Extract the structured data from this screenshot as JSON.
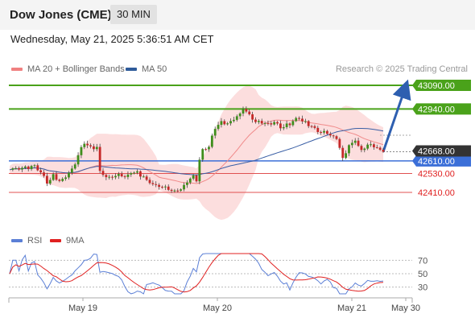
{
  "header": {
    "title": "Dow Jones (CME)",
    "timeframe": "30 MIN"
  },
  "datetime": "Wednesday, May 21, 2025 5:36:51 AM CET",
  "legend": {
    "items": [
      {
        "label": "MA 20 + Bollinger Bands",
        "color": "#f08080"
      },
      {
        "label": "MA 50",
        "color": "#2e5b9a"
      }
    ],
    "rsi_items": [
      {
        "label": "RSI",
        "color": "#5b7fd6"
      },
      {
        "label": "9MA",
        "color": "#e02020"
      }
    ]
  },
  "copyright": "Research © 2025 Trading Central",
  "colors": {
    "green": "#4aa21a",
    "blue": "#3b6fd8",
    "red": "#e05050",
    "current": "#333333",
    "arrow": "#2e5fb0"
  },
  "chart_data": {
    "type": "candlestick",
    "y_range": [
      42370,
      43170
    ],
    "levels": [
      {
        "value": 43090,
        "label": "43090.00",
        "kind": "resistance"
      },
      {
        "value": 42940,
        "label": "42940.00",
        "kind": "resistance"
      },
      {
        "value": 42610,
        "label": "42610.00",
        "kind": "pivot"
      },
      {
        "value": 42530,
        "label": "42530.00",
        "kind": "support"
      },
      {
        "value": 42410,
        "label": "42410.00",
        "kind": "support"
      }
    ],
    "current_price": {
      "value": 42668,
      "label": "42668.00"
    },
    "arrow": {
      "from": 42668,
      "to": 43090
    },
    "x_labels": [
      "May 19",
      "May 20",
      "May 21",
      "May 30"
    ],
    "price_path": [
      [
        0,
        42560
      ],
      [
        3,
        42565
      ],
      [
        6,
        42570
      ],
      [
        8,
        42575
      ],
      [
        10,
        42540
      ],
      [
        12,
        42470
      ],
      [
        14,
        42520
      ],
      [
        16,
        42480
      ],
      [
        18,
        42510
      ],
      [
        20,
        42560
      ],
      [
        22,
        42640
      ],
      [
        24,
        42730
      ],
      [
        26,
        42690
      ],
      [
        28,
        42700
      ],
      [
        29,
        42540
      ],
      [
        31,
        42510
      ],
      [
        33,
        42505
      ],
      [
        35,
        42525
      ],
      [
        37,
        42510
      ],
      [
        39,
        42535
      ],
      [
        41,
        42540
      ],
      [
        43,
        42505
      ],
      [
        45,
        42470
      ],
      [
        47,
        42455
      ],
      [
        49,
        42445
      ],
      [
        51,
        42430
      ],
      [
        53,
        42420
      ],
      [
        55,
        42435
      ],
      [
        57,
        42480
      ],
      [
        59,
        42510
      ],
      [
        60,
        42480
      ],
      [
        61,
        42620
      ],
      [
        62,
        42680
      ],
      [
        64,
        42700
      ],
      [
        66,
        42820
      ],
      [
        68,
        42860
      ],
      [
        70,
        42845
      ],
      [
        72,
        42880
      ],
      [
        74,
        42900
      ],
      [
        75,
        42940
      ],
      [
        77,
        42895
      ],
      [
        79,
        42855
      ],
      [
        81,
        42860
      ],
      [
        83,
        42845
      ],
      [
        85,
        42858
      ],
      [
        87,
        42820
      ],
      [
        89,
        42835
      ],
      [
        91,
        42865
      ],
      [
        93,
        42885
      ],
      [
        95,
        42850
      ],
      [
        97,
        42825
      ],
      [
        99,
        42800
      ],
      [
        101,
        42790
      ],
      [
        103,
        42775
      ],
      [
        105,
        42760
      ],
      [
        107,
        42620
      ],
      [
        109,
        42705
      ],
      [
        111,
        42740
      ],
      [
        113,
        42680
      ],
      [
        115,
        42720
      ],
      [
        117,
        42698
      ],
      [
        119,
        42680
      ],
      [
        120,
        42668
      ]
    ],
    "rsi": {
      "levels": [
        70,
        50,
        30
      ]
    }
  }
}
